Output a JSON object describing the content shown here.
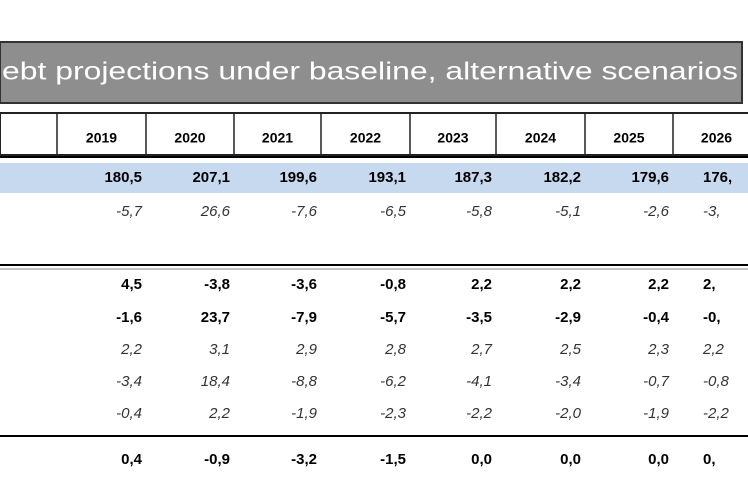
{
  "header": {
    "title": "ebt projections under baseline, alternative scenarios"
  },
  "table": {
    "columns": [
      "2019",
      "2020",
      "2021",
      "2022",
      "2023",
      "2024",
      "2025",
      "2026"
    ],
    "rows": [
      [
        "180,5",
        "207,1",
        "199,6",
        "193,1",
        "187,3",
        "182,2",
        "179,6",
        "176,"
      ],
      [
        "-5,7",
        "26,6",
        "-7,6",
        "-6,5",
        "-5,8",
        "-5,1",
        "-2,6",
        "-3,"
      ],
      [
        "4,5",
        "-3,8",
        "-3,6",
        "-0,8",
        "2,2",
        "2,2",
        "2,2",
        "2,"
      ],
      [
        "-1,6",
        "23,7",
        "-7,9",
        "-5,7",
        "-3,5",
        "-2,9",
        "-0,4",
        "-0,"
      ],
      [
        "2,2",
        "3,1",
        "2,9",
        "2,8",
        "2,7",
        "2,5",
        "2,3",
        "2,2"
      ],
      [
        "-3,4",
        "18,4",
        "-8,8",
        "-6,2",
        "-4,1",
        "-3,4",
        "-0,7",
        "-0,8"
      ],
      [
        "-0,4",
        "2,2",
        "-1,9",
        "-2,3",
        "-2,2",
        "-2,0",
        "-1,9",
        "-2,2"
      ],
      [
        "0,4",
        "-0,9",
        "-3,2",
        "-1,5",
        "0,0",
        "0,0",
        "0,0",
        "0,"
      ]
    ]
  }
}
